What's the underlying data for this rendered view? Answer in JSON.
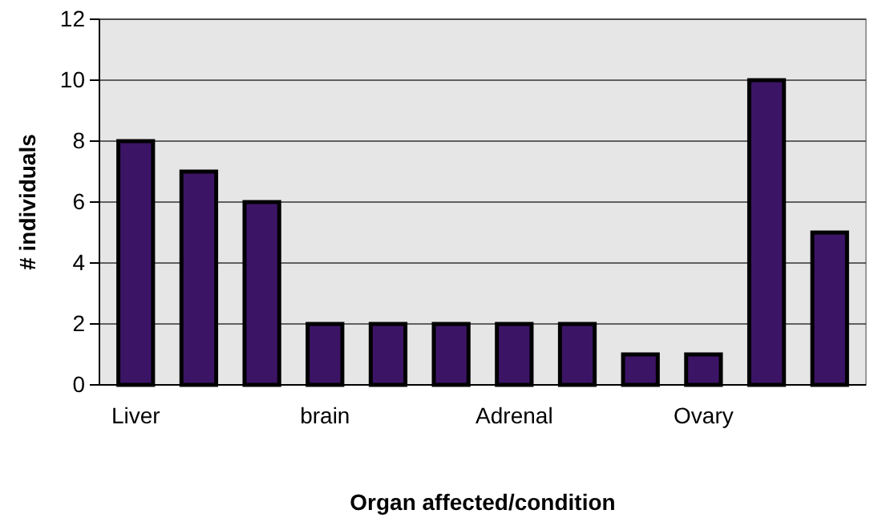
{
  "chart_data": {
    "type": "bar",
    "xlabel": "Organ affected/condition",
    "ylabel": "# individuals",
    "categories": [
      "Liver",
      null,
      null,
      "brain",
      null,
      null,
      "Adrenal",
      null,
      null,
      "Ovary",
      null,
      null
    ],
    "values": [
      8,
      7,
      6,
      2,
      2,
      2,
      2,
      2,
      1,
      1,
      10,
      5
    ],
    "color": "#3c1466",
    "ylim": [
      0,
      12
    ],
    "yticks": [
      0,
      2,
      4,
      6,
      8,
      10,
      12
    ],
    "grid": "y"
  }
}
